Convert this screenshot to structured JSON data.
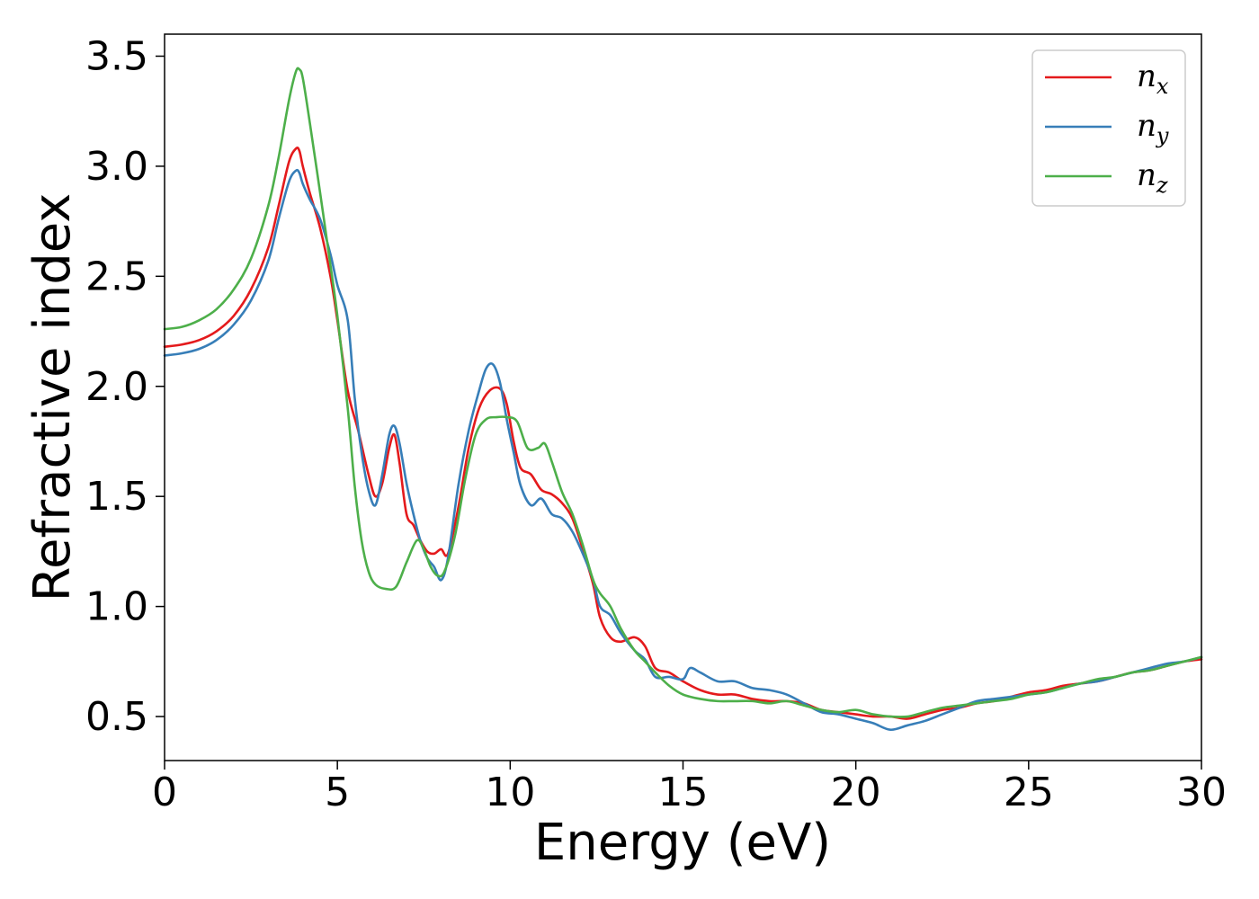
{
  "chart_data": {
    "type": "line",
    "xlabel": "Energy (eV)",
    "ylabel": "Refractive index",
    "xlim": [
      0,
      30
    ],
    "ylim": [
      0.3,
      3.6
    ],
    "xticks": [
      "0",
      "5",
      "10",
      "15",
      "20",
      "25",
      "30"
    ],
    "yticks": [
      "0.5",
      "1.0",
      "1.5",
      "2.0",
      "2.5",
      "3.0",
      "3.5"
    ],
    "grid": false,
    "legend_position": "top-right",
    "series": [
      {
        "name": "n",
        "subscript": "x",
        "color": "#e41a1c",
        "x": [
          0,
          0.5,
          1,
          1.5,
          2,
          2.5,
          3,
          3.3,
          3.6,
          3.8,
          3.9,
          4.0,
          4.2,
          4.5,
          4.8,
          5.0,
          5.3,
          5.6,
          5.9,
          6.1,
          6.3,
          6.5,
          6.65,
          6.8,
          7.0,
          7.2,
          7.4,
          7.6,
          7.8,
          8.0,
          8.2,
          8.5,
          8.8,
          9.1,
          9.4,
          9.7,
          9.9,
          10.1,
          10.3,
          10.6,
          10.9,
          11.2,
          11.5,
          11.8,
          12.1,
          12.4,
          12.6,
          12.9,
          13.2,
          13.6,
          13.9,
          14.2,
          14.6,
          15.0,
          15.5,
          16.0,
          16.5,
          17.0,
          17.5,
          18.0,
          18.5,
          19.0,
          19.5,
          20.0,
          20.5,
          21.0,
          21.5,
          22.0,
          22.5,
          23.0,
          23.5,
          24.0,
          24.5,
          25.0,
          25.5,
          26.0,
          26.5,
          27.0,
          27.5,
          28.0,
          28.5,
          29.0,
          29.5,
          30.0
        ],
        "y": [
          2.18,
          2.19,
          2.21,
          2.25,
          2.32,
          2.44,
          2.63,
          2.82,
          3.02,
          3.08,
          3.07,
          3.0,
          2.88,
          2.72,
          2.5,
          2.3,
          1.98,
          1.8,
          1.6,
          1.5,
          1.56,
          1.72,
          1.78,
          1.65,
          1.42,
          1.37,
          1.3,
          1.25,
          1.24,
          1.26,
          1.24,
          1.45,
          1.72,
          1.9,
          1.98,
          1.99,
          1.92,
          1.75,
          1.63,
          1.6,
          1.53,
          1.51,
          1.47,
          1.4,
          1.26,
          1.1,
          0.95,
          0.86,
          0.84,
          0.86,
          0.82,
          0.72,
          0.7,
          0.66,
          0.62,
          0.6,
          0.6,
          0.58,
          0.57,
          0.57,
          0.56,
          0.53,
          0.52,
          0.51,
          0.5,
          0.5,
          0.49,
          0.51,
          0.53,
          0.54,
          0.56,
          0.57,
          0.59,
          0.61,
          0.62,
          0.64,
          0.65,
          0.66,
          0.68,
          0.7,
          0.71,
          0.73,
          0.75,
          0.76
        ]
      },
      {
        "name": "n",
        "subscript": "y",
        "color": "#377eb8",
        "x": [
          0,
          0.5,
          1,
          1.5,
          2,
          2.5,
          3,
          3.3,
          3.6,
          3.8,
          3.9,
          4.0,
          4.2,
          4.5,
          4.8,
          5.0,
          5.3,
          5.5,
          5.7,
          5.9,
          6.1,
          6.3,
          6.5,
          6.65,
          6.8,
          7.0,
          7.2,
          7.4,
          7.6,
          7.8,
          8.0,
          8.2,
          8.5,
          8.8,
          9.1,
          9.3,
          9.5,
          9.7,
          9.9,
          10.1,
          10.3,
          10.6,
          10.9,
          11.2,
          11.5,
          11.8,
          12.1,
          12.4,
          12.6,
          12.9,
          13.2,
          13.6,
          13.9,
          14.2,
          14.6,
          15.0,
          15.2,
          15.5,
          16.0,
          16.5,
          17.0,
          17.5,
          18.0,
          18.5,
          19.0,
          19.5,
          20.0,
          20.5,
          21.0,
          21.5,
          22.0,
          22.5,
          23.0,
          23.5,
          24.0,
          24.5,
          25.0,
          25.5,
          26.0,
          26.5,
          27.0,
          27.5,
          28.0,
          28.5,
          29.0,
          29.5,
          30.0
        ],
        "y": [
          2.14,
          2.15,
          2.17,
          2.21,
          2.28,
          2.39,
          2.57,
          2.76,
          2.93,
          2.98,
          2.97,
          2.92,
          2.85,
          2.76,
          2.6,
          2.46,
          2.3,
          1.95,
          1.7,
          1.53,
          1.46,
          1.6,
          1.78,
          1.82,
          1.74,
          1.56,
          1.42,
          1.3,
          1.22,
          1.18,
          1.12,
          1.22,
          1.55,
          1.8,
          1.98,
          2.08,
          2.1,
          2.02,
          1.85,
          1.7,
          1.55,
          1.46,
          1.49,
          1.42,
          1.4,
          1.34,
          1.24,
          1.12,
          1.0,
          0.96,
          0.88,
          0.8,
          0.76,
          0.68,
          0.68,
          0.67,
          0.72,
          0.7,
          0.66,
          0.66,
          0.63,
          0.62,
          0.6,
          0.56,
          0.52,
          0.51,
          0.49,
          0.47,
          0.44,
          0.46,
          0.48,
          0.51,
          0.54,
          0.57,
          0.58,
          0.59,
          0.6,
          0.61,
          0.63,
          0.65,
          0.66,
          0.68,
          0.7,
          0.72,
          0.74,
          0.75,
          0.77
        ]
      },
      {
        "name": "n",
        "subscript": "z",
        "color": "#4daf4a",
        "x": [
          0,
          0.5,
          1,
          1.5,
          2,
          2.5,
          3,
          3.3,
          3.6,
          3.8,
          3.9,
          4.0,
          4.2,
          4.5,
          4.8,
          5.0,
          5.3,
          5.5,
          5.7,
          5.9,
          6.1,
          6.4,
          6.7,
          7.0,
          7.3,
          7.5,
          7.7,
          7.9,
          8.1,
          8.4,
          8.7,
          9.0,
          9.3,
          9.6,
          9.9,
          10.2,
          10.5,
          10.8,
          11.0,
          11.2,
          11.5,
          11.8,
          12.1,
          12.4,
          12.6,
          12.9,
          13.2,
          13.6,
          13.9,
          14.2,
          14.6,
          15.0,
          15.5,
          16.0,
          16.5,
          17.0,
          17.5,
          18.0,
          18.5,
          19.0,
          19.5,
          20.0,
          20.5,
          21.0,
          21.5,
          22.0,
          22.5,
          23.0,
          23.5,
          24.0,
          24.5,
          25.0,
          25.5,
          26.0,
          26.5,
          27.0,
          27.5,
          28.0,
          28.5,
          29.0,
          29.5,
          30.0
        ],
        "y": [
          2.26,
          2.27,
          2.3,
          2.35,
          2.44,
          2.58,
          2.82,
          3.04,
          3.3,
          3.43,
          3.44,
          3.4,
          3.2,
          2.88,
          2.55,
          2.32,
          1.9,
          1.55,
          1.3,
          1.16,
          1.1,
          1.08,
          1.09,
          1.2,
          1.3,
          1.26,
          1.18,
          1.14,
          1.16,
          1.32,
          1.58,
          1.78,
          1.85,
          1.86,
          1.86,
          1.84,
          1.72,
          1.72,
          1.74,
          1.66,
          1.52,
          1.42,
          1.28,
          1.12,
          1.06,
          1.0,
          0.9,
          0.8,
          0.75,
          0.7,
          0.64,
          0.6,
          0.58,
          0.57,
          0.57,
          0.57,
          0.56,
          0.57,
          0.55,
          0.53,
          0.52,
          0.53,
          0.51,
          0.5,
          0.5,
          0.52,
          0.54,
          0.55,
          0.56,
          0.57,
          0.58,
          0.6,
          0.61,
          0.63,
          0.65,
          0.67,
          0.68,
          0.7,
          0.71,
          0.73,
          0.75,
          0.77
        ]
      }
    ]
  }
}
